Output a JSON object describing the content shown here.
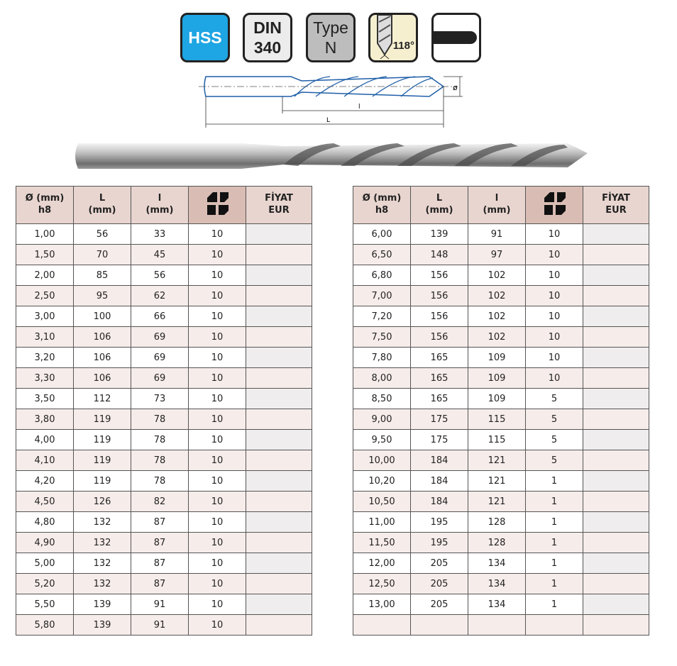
{
  "badges": {
    "material": "HSS",
    "standard_line1": "DIN",
    "standard_line2": "340",
    "type_line1": "Type",
    "type_line2": "N",
    "angle": "118°"
  },
  "diagram": {
    "diameter_label": "ø",
    "flute_label": "l",
    "length_label": "L"
  },
  "table_headers": {
    "diameter_line1": "Ø (mm)",
    "diameter_line2": "h8",
    "L_line1": "L",
    "L_line2": "(mm)",
    "l_line1": "l",
    "l_line2": "(mm)",
    "pack_icon": "package-quantity-icon",
    "price_line1": "FİYAT",
    "price_line2": "EUR"
  },
  "left_rows": [
    [
      "1,00",
      "56",
      "33",
      "10"
    ],
    [
      "1,50",
      "70",
      "45",
      "10"
    ],
    [
      "2,00",
      "85",
      "56",
      "10"
    ],
    [
      "2,50",
      "95",
      "62",
      "10"
    ],
    [
      "3,00",
      "100",
      "66",
      "10"
    ],
    [
      "3,10",
      "106",
      "69",
      "10"
    ],
    [
      "3,20",
      "106",
      "69",
      "10"
    ],
    [
      "3,30",
      "106",
      "69",
      "10"
    ],
    [
      "3,50",
      "112",
      "73",
      "10"
    ],
    [
      "3,80",
      "119",
      "78",
      "10"
    ],
    [
      "4,00",
      "119",
      "78",
      "10"
    ],
    [
      "4,10",
      "119",
      "78",
      "10"
    ],
    [
      "4,20",
      "119",
      "78",
      "10"
    ],
    [
      "4,50",
      "126",
      "82",
      "10"
    ],
    [
      "4,80",
      "132",
      "87",
      "10"
    ],
    [
      "4,90",
      "132",
      "87",
      "10"
    ],
    [
      "5,00",
      "132",
      "87",
      "10"
    ],
    [
      "5,20",
      "132",
      "87",
      "10"
    ],
    [
      "5,50",
      "139",
      "91",
      "10"
    ],
    [
      "5,80",
      "139",
      "91",
      "10"
    ]
  ],
  "right_rows": [
    [
      "6,00",
      "139",
      "91",
      "10"
    ],
    [
      "6,50",
      "148",
      "97",
      "10"
    ],
    [
      "6,80",
      "156",
      "102",
      "10"
    ],
    [
      "7,00",
      "156",
      "102",
      "10"
    ],
    [
      "7,20",
      "156",
      "102",
      "10"
    ],
    [
      "7,50",
      "156",
      "102",
      "10"
    ],
    [
      "7,80",
      "165",
      "109",
      "10"
    ],
    [
      "8,00",
      "165",
      "109",
      "10"
    ],
    [
      "8,50",
      "165",
      "109",
      "5"
    ],
    [
      "9,00",
      "175",
      "115",
      "5"
    ],
    [
      "9,50",
      "175",
      "115",
      "5"
    ],
    [
      "10,00",
      "184",
      "121",
      "5"
    ],
    [
      "10,20",
      "184",
      "121",
      "1"
    ],
    [
      "10,50",
      "184",
      "121",
      "1"
    ],
    [
      "11,00",
      "195",
      "128",
      "1"
    ],
    [
      "11,50",
      "195",
      "128",
      "1"
    ],
    [
      "12,00",
      "205",
      "134",
      "1"
    ],
    [
      "12,50",
      "205",
      "134",
      "1"
    ],
    [
      "13,00",
      "205",
      "134",
      "1"
    ],
    [
      "",
      "",
      "",
      ""
    ]
  ]
}
